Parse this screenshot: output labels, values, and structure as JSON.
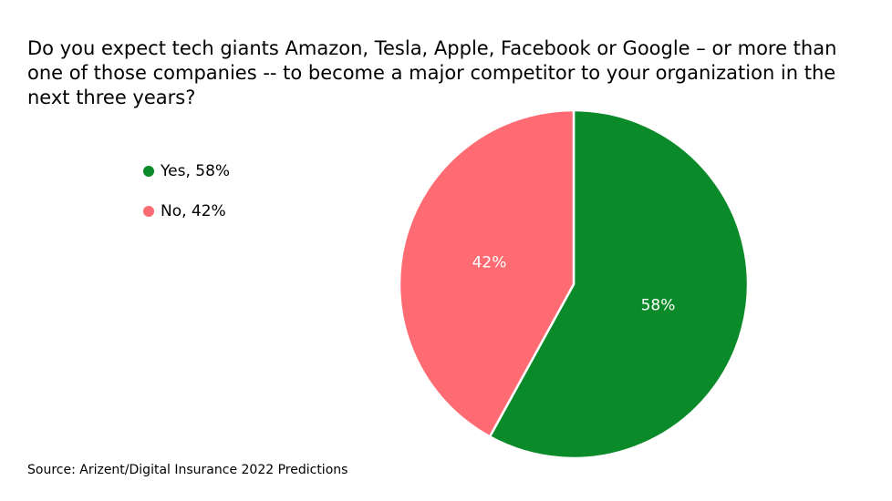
{
  "chart_data": {
    "type": "pie",
    "title": "Do you expect tech giants Amazon, Tesla, Apple, Facebook or Google – or more than one of those companies -- to become a major competitor to your organization in the next three years?",
    "categories": [
      "Yes, 58%",
      "No, 42%"
    ],
    "values": [
      58,
      42
    ],
    "value_labels": [
      "58%",
      "42%"
    ],
    "colors": [
      "#0b8a29",
      "#ff6b72"
    ],
    "source": "Source: Arizent/Digital Insurance 2022 Predictions"
  }
}
